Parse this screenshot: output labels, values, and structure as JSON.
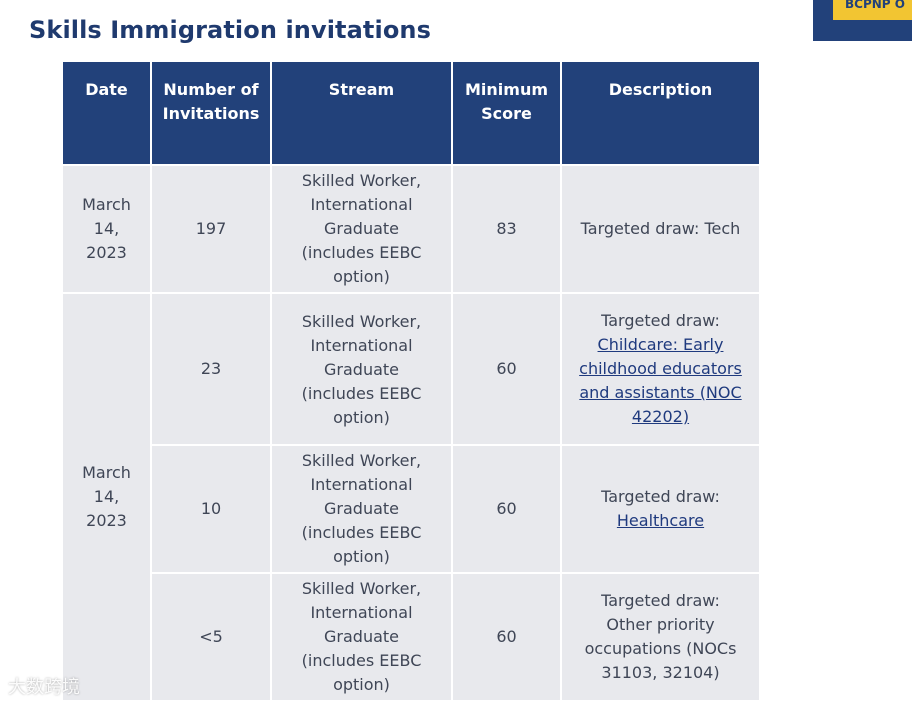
{
  "page": {
    "heading": "Skills Immigration invitations",
    "banner_button": "BCPNP O"
  },
  "table": {
    "headers": {
      "date": "Date",
      "number": "Number of Invitations",
      "stream": "Stream",
      "score": "Minimum Score",
      "description": "Description"
    },
    "rows": [
      {
        "date": "March 14, 2023",
        "number": "197",
        "stream": "Skilled Worker, International Graduate (includes EEBC option)",
        "score": "83",
        "description_prefix": "Targeted draw: Tech",
        "description_link": ""
      },
      {
        "date": "March 14, 2023",
        "number": "23",
        "stream": "Skilled Worker, International Graduate (includes EEBC option)",
        "score": "60",
        "description_prefix": "Targeted draw:",
        "description_link": "Childcare: Early childhood educators and assistants (NOC 42202)"
      },
      {
        "number": "10",
        "stream": "Skilled Worker, International Graduate (includes EEBC option)",
        "score": "60",
        "description_prefix": "Targeted draw:",
        "description_link": "Healthcare"
      },
      {
        "number": "<5",
        "stream": "Skilled Worker, International Graduate (includes EEBC option)",
        "score": "60",
        "description_prefix": "Targeted draw: Other priority occupations (NOCs 31103, 32104)",
        "description_link": ""
      }
    ]
  },
  "watermark": "大数跨境",
  "colors": {
    "header_bg": "#22417a",
    "cell_bg": "#e8e9ed",
    "heading": "#1f3a6e",
    "accent": "#f2c532"
  }
}
